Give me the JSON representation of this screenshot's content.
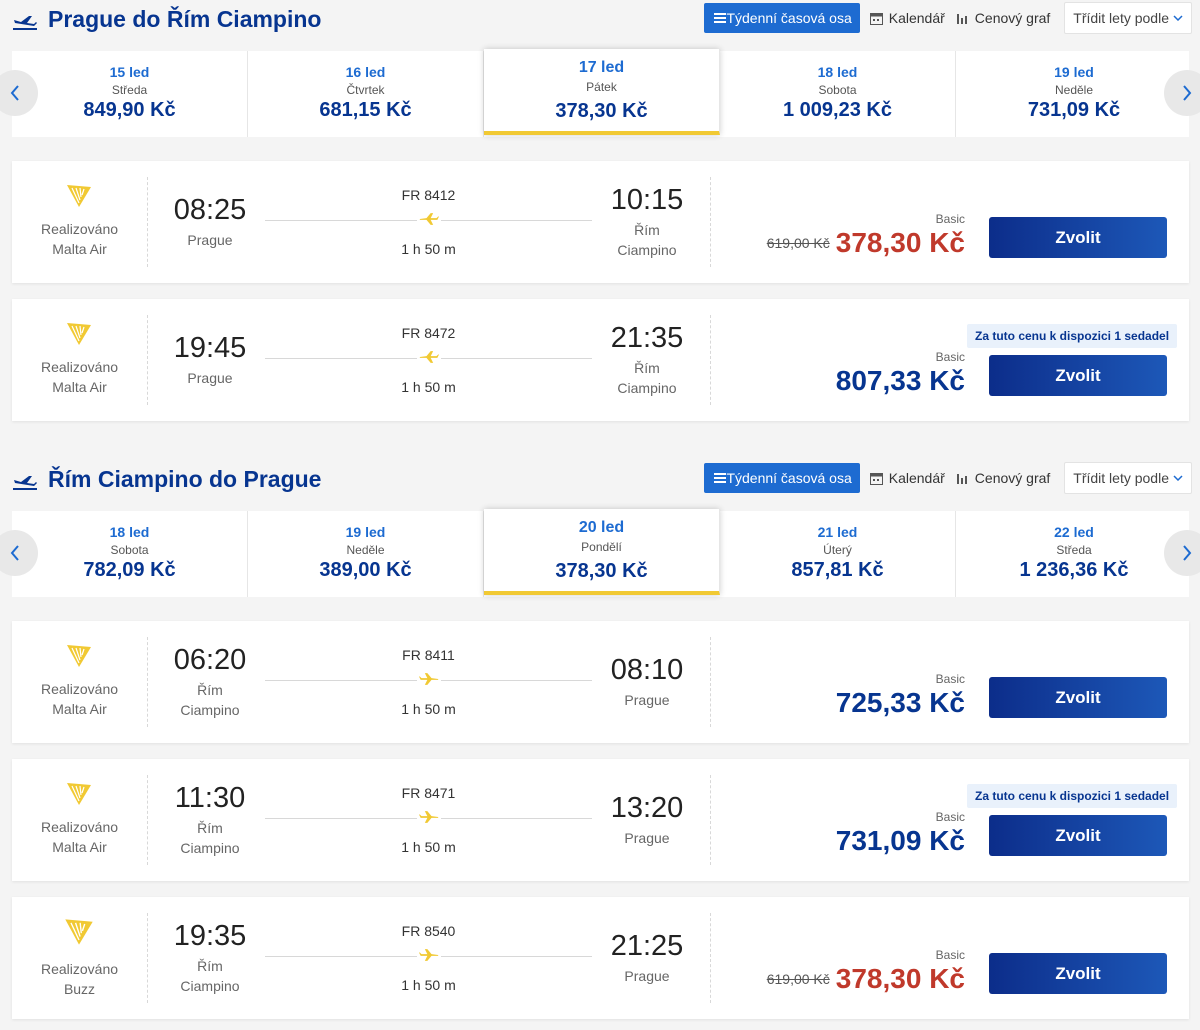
{
  "colors": {
    "brand": "#073590",
    "accent": "#1d6bd1",
    "promo": "#c0392b",
    "highlight": "#f1c933",
    "harp": "#f1c933"
  },
  "toolbar": {
    "weekly": "Týdenní časová osa",
    "calendar": "Kalendář",
    "chart": "Cenový graf",
    "sort": "Třídit lety podle"
  },
  "outbound": {
    "title": "Prague do Řím Ciampino",
    "dates": [
      {
        "d": "15 led",
        "wd": "Středa",
        "price": "849,90 Kč"
      },
      {
        "d": "16 led",
        "wd": "Čtvrtek",
        "price": "681,15 Kč"
      },
      {
        "d": "17 led",
        "wd": "Pátek",
        "price": "378,30 Kč"
      },
      {
        "d": "18 led",
        "wd": "Sobota",
        "price": "1 009,23 Kč"
      },
      {
        "d": "19 led",
        "wd": "Neděle",
        "price": "731,09 Kč"
      }
    ],
    "flights": [
      {
        "op1": "Realizováno",
        "op2": "Malta Air",
        "dep": "08:25",
        "dep_c1": "Prague",
        "dep_c2": "",
        "fn": "FR 8412",
        "dur": "1 h 50 m",
        "arr": "10:15",
        "arr_c1": "Řím",
        "arr_c2": "Ciampino",
        "badge": "",
        "fare": "Basic",
        "old": "619,00 Kč",
        "price": "378,30 Kč",
        "btn": "Zvolit"
      },
      {
        "op1": "Realizováno",
        "op2": "Malta Air",
        "dep": "19:45",
        "dep_c1": "Prague",
        "dep_c2": "",
        "fn": "FR 8472",
        "dur": "1 h 50 m",
        "arr": "21:35",
        "arr_c1": "Řím",
        "arr_c2": "Ciampino",
        "badge": "Za tuto cenu k dispozici 1 sedadel",
        "fare": "Basic",
        "old": "",
        "price": "807,33 Kč",
        "btn": "Zvolit"
      }
    ]
  },
  "inbound": {
    "title": "Řím Ciampino do Prague",
    "dates": [
      {
        "d": "18 led",
        "wd": "Sobota",
        "price": "782,09 Kč"
      },
      {
        "d": "19 led",
        "wd": "Neděle",
        "price": "389,00 Kč"
      },
      {
        "d": "20 led",
        "wd": "Pondělí",
        "price": "378,30 Kč"
      },
      {
        "d": "21 led",
        "wd": "Úterý",
        "price": "857,81 Kč"
      },
      {
        "d": "22 led",
        "wd": "Středa",
        "price": "1 236,36 Kč"
      }
    ],
    "flights": [
      {
        "op1": "Realizováno",
        "op2": "Malta Air",
        "dep": "06:20",
        "dep_c1": "Řím",
        "dep_c2": "Ciampino",
        "fn": "FR 8411",
        "dur": "1 h 50 m",
        "arr": "08:10",
        "arr_c1": "Prague",
        "arr_c2": "",
        "badge": "",
        "fare": "Basic",
        "old": "",
        "price": "725,33 Kč",
        "btn": "Zvolit"
      },
      {
        "op1": "Realizováno",
        "op2": "Malta Air",
        "dep": "11:30",
        "dep_c1": "Řím",
        "dep_c2": "Ciampino",
        "fn": "FR 8471",
        "dur": "1 h 50 m",
        "arr": "13:20",
        "arr_c1": "Prague",
        "arr_c2": "",
        "badge": "Za tuto cenu k dispozici 1 sedadel",
        "fare": "Basic",
        "old": "",
        "price": "731,09 Kč",
        "btn": "Zvolit"
      },
      {
        "op1": "Realizováno",
        "op2": "Buzz",
        "dep": "19:35",
        "dep_c1": "Řím",
        "dep_c2": "Ciampino",
        "fn": "FR 8540",
        "dur": "1 h 50 m",
        "arr": "21:25",
        "arr_c1": "Prague",
        "arr_c2": "",
        "badge": "",
        "fare": "Basic",
        "old": "619,00 Kč",
        "price": "378,30 Kč",
        "btn": "Zvolit"
      }
    ]
  }
}
